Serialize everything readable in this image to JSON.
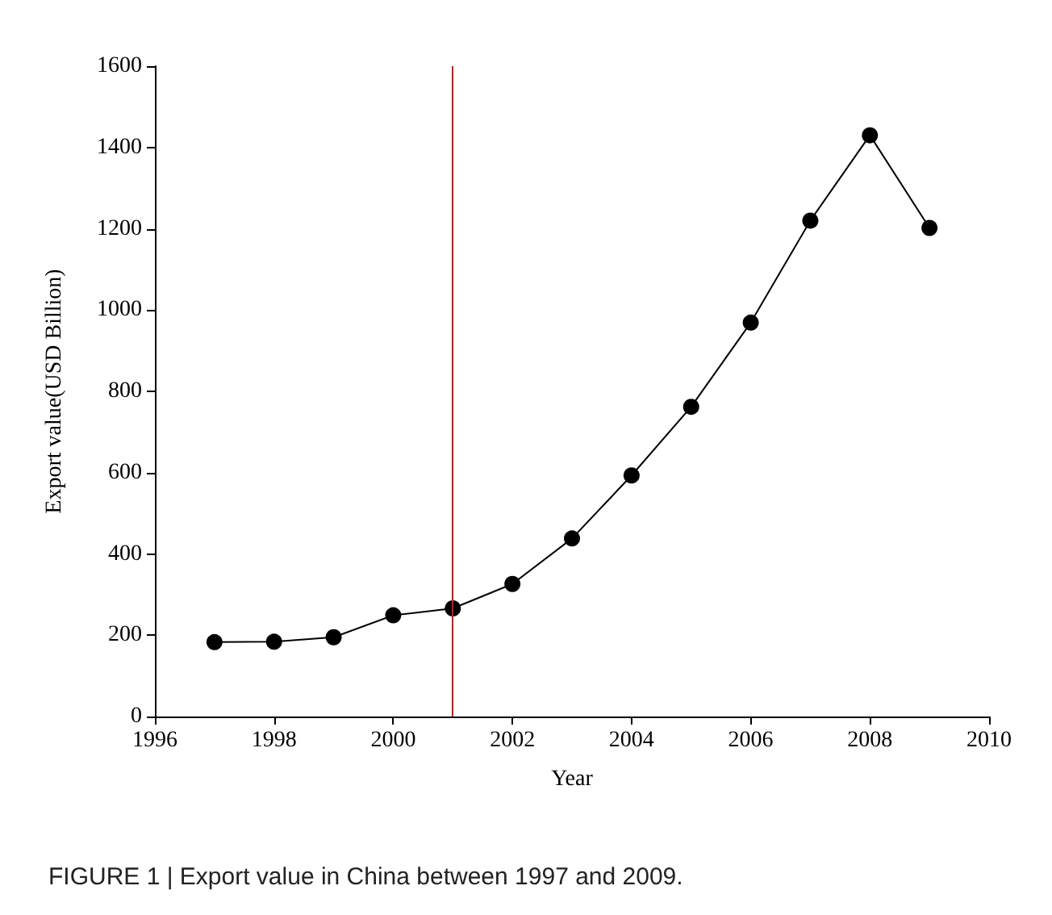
{
  "chart_data": {
    "type": "line",
    "xlabel": "Year",
    "ylabel": "Export value(USD Billion)",
    "x": [
      1997,
      1998,
      1999,
      2000,
      2001,
      2002,
      2003,
      2004,
      2005,
      2006,
      2007,
      2008,
      2009
    ],
    "series": [
      {
        "color": "#000000",
        "values": [
          183,
          184,
          195,
          249,
          266,
          326,
          438,
          593,
          762,
          969,
          1220,
          1430,
          1202
        ]
      }
    ],
    "xlim": [
      1996,
      2010
    ],
    "xticks": [
      1996,
      1998,
      2000,
      2002,
      2004,
      2006,
      2008,
      2010
    ],
    "ylim": [
      0,
      1600
    ],
    "yticks": [
      0,
      200,
      400,
      600,
      800,
      1000,
      1200,
      1400,
      1600
    ],
    "ref_lines": [
      {
        "axis": "x",
        "value": 2001,
        "color": "#a52a2a",
        "line_style": "solid"
      }
    ],
    "marker": "circle",
    "line_style": "solid",
    "grid": false,
    "annotations": [
      "FIGURE 1 | Export value in China between 1997 and 2009."
    ]
  }
}
